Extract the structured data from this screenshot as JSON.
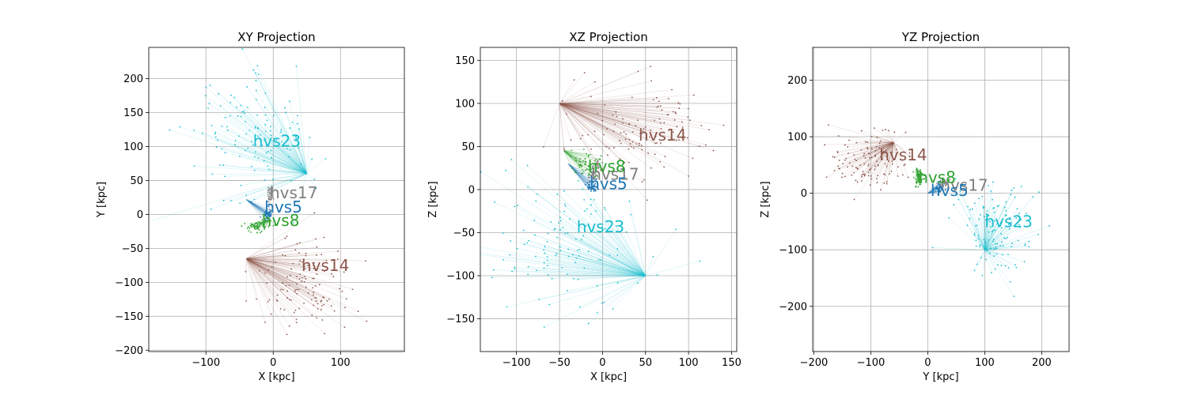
{
  "chart_data": [
    {
      "type": "scatter",
      "title": "XY Projection",
      "xlabel": "X [kpc]",
      "ylabel": "Y [kpc]",
      "xlim": [
        -185,
        195
      ],
      "ylim": [
        -202,
        246
      ],
      "xticks": [
        -100,
        0,
        100
      ],
      "yticks": [
        -200,
        -150,
        -100,
        -50,
        0,
        50,
        100,
        150,
        200
      ],
      "grid": true,
      "series": [
        {
          "name": "hvs23",
          "color": "#17becf",
          "origin": [
            50,
            60
          ],
          "center": [
            -40,
            110
          ],
          "spread": [
            45,
            45
          ],
          "count": 130,
          "label_pos": [
            -30,
            108
          ]
        },
        {
          "name": "hvs17",
          "color": "#7f7f7f",
          "origin": [
            -2,
            42
          ],
          "center": [
            -4,
            30
          ],
          "spread": [
            3,
            8
          ],
          "count": 30,
          "label_pos": [
            -5,
            32
          ]
        },
        {
          "name": "hvs5",
          "color": "#1f77b4",
          "origin": [
            -40,
            22
          ],
          "center": [
            -8,
            0
          ],
          "spread": [
            4,
            4
          ],
          "count": 50,
          "label_pos": [
            -13,
            11
          ]
        },
        {
          "name": "hvs8",
          "color": "#2ca02c",
          "origin": [
            -4,
            -8
          ],
          "center": [
            -25,
            -18
          ],
          "spread": [
            10,
            4
          ],
          "count": 60,
          "label_pos": [
            -17,
            -9
          ]
        },
        {
          "name": "hvs14",
          "color": "#8c564b",
          "origin": [
            -40,
            -65
          ],
          "center": [
            50,
            -100
          ],
          "spread": [
            40,
            35
          ],
          "count": 130,
          "label_pos": [
            42,
            -75
          ]
        }
      ]
    },
    {
      "type": "scatter",
      "title": "XZ Projection",
      "xlabel": "X [kpc]",
      "ylabel": "Z [kpc]",
      "xlim": [
        -142,
        156
      ],
      "ylim": [
        -188,
        165
      ],
      "xticks": [
        -150,
        -100,
        -50,
        0,
        50,
        100,
        150
      ],
      "yticks": [
        -150,
        -100,
        -50,
        0,
        50,
        100,
        150
      ],
      "grid": true,
      "series": [
        {
          "name": "hvs23",
          "color": "#17becf",
          "origin": [
            50,
            -100
          ],
          "center": [
            -40,
            -65
          ],
          "spread": [
            45,
            40
          ],
          "count": 130,
          "label_pos": [
            -30,
            -43
          ]
        },
        {
          "name": "hvs17",
          "color": "#7f7f7f",
          "origin": [
            -5,
            35
          ],
          "center": [
            -10,
            18
          ],
          "spread": [
            4,
            5
          ],
          "count": 30,
          "label_pos": [
            -13,
            18
          ]
        },
        {
          "name": "hvs5",
          "color": "#1f77b4",
          "origin": [
            -40,
            30
          ],
          "center": [
            -12,
            5
          ],
          "spread": [
            4,
            4
          ],
          "count": 50,
          "label_pos": [
            -15,
            7
          ]
        },
        {
          "name": "hvs8",
          "color": "#2ca02c",
          "origin": [
            -45,
            45
          ],
          "center": [
            -20,
            30
          ],
          "spread": [
            8,
            8
          ],
          "count": 60,
          "label_pos": [
            -17,
            27
          ]
        },
        {
          "name": "hvs14",
          "color": "#8c564b",
          "origin": [
            -50,
            100
          ],
          "center": [
            45,
            70
          ],
          "spread": [
            40,
            25
          ],
          "count": 130,
          "label_pos": [
            42,
            63
          ]
        }
      ]
    },
    {
      "type": "scatter",
      "title": "YZ Projection",
      "xlabel": "Y [kpc]",
      "ylabel": "Z [kpc]",
      "xlim": [
        -202,
        248
      ],
      "ylim": [
        -280,
        258
      ],
      "xticks": [
        -200,
        -100,
        0,
        100,
        200
      ],
      "yticks": [
        -200,
        -100,
        0,
        100,
        200
      ],
      "grid": true,
      "series": [
        {
          "name": "hvs23",
          "color": "#17becf",
          "origin": [
            100,
            -100
          ],
          "center": [
            120,
            -60
          ],
          "spread": [
            35,
            40
          ],
          "count": 130,
          "label_pos": [
            100,
            -50
          ]
        },
        {
          "name": "hvs17",
          "color": "#7f7f7f",
          "origin": [
            40,
            25
          ],
          "center": [
            25,
            15
          ],
          "spread": [
            6,
            5
          ],
          "count": 30,
          "label_pos": [
            22,
            14
          ]
        },
        {
          "name": "hvs5",
          "color": "#1f77b4",
          "origin": [
            0,
            0
          ],
          "center": [
            20,
            10
          ],
          "spread": [
            4,
            4
          ],
          "count": 50,
          "label_pos": [
            5,
            5
          ]
        },
        {
          "name": "hvs8",
          "color": "#2ca02c",
          "origin": [
            -20,
            45
          ],
          "center": [
            -15,
            25
          ],
          "spread": [
            4,
            8
          ],
          "count": 60,
          "label_pos": [
            -17,
            28
          ]
        },
        {
          "name": "hvs14",
          "color": "#8c564b",
          "origin": [
            -60,
            90
          ],
          "center": [
            -100,
            55
          ],
          "spread": [
            35,
            25
          ],
          "count": 130,
          "label_pos": [
            -85,
            68
          ]
        }
      ]
    }
  ]
}
